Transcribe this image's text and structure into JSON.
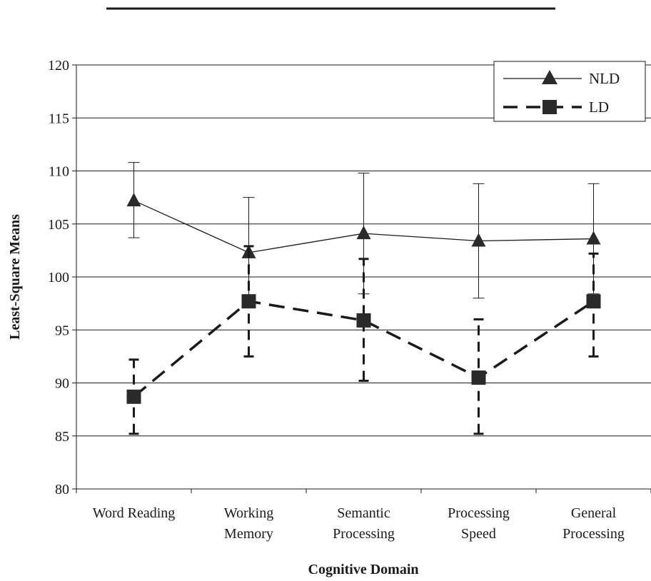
{
  "chart_data": {
    "type": "line",
    "title": "",
    "xlabel": "Cognitive Domain",
    "ylabel": "Least-Square Means",
    "ylim": [
      80,
      120
    ],
    "yticks": [
      80,
      85,
      90,
      95,
      100,
      105,
      110,
      115,
      120
    ],
    "grid": "horizontal",
    "legend_position": "top-right",
    "categories": [
      [
        "Word Reading"
      ],
      [
        "Working",
        "Memory"
      ],
      [
        "Semantic",
        "Processing"
      ],
      [
        "Processing",
        "Speed"
      ],
      [
        "General",
        "Processing"
      ]
    ],
    "series": [
      {
        "name": "NLD",
        "line_style": "solid",
        "marker": "triangle",
        "values": [
          107.2,
          102.3,
          104.1,
          103.4,
          103.6
        ],
        "error_low": [
          103.7,
          97.5,
          98.4,
          98.0,
          98.4
        ],
        "error_high": [
          110.8,
          107.5,
          109.8,
          108.8,
          108.8
        ]
      },
      {
        "name": "LD",
        "line_style": "dashed",
        "marker": "square",
        "values": [
          88.7,
          97.7,
          95.9,
          90.5,
          97.7
        ],
        "error_low": [
          85.2,
          92.5,
          90.2,
          85.2,
          92.5
        ],
        "error_high": [
          92.2,
          102.9,
          101.7,
          96.0,
          102.2
        ]
      }
    ]
  }
}
